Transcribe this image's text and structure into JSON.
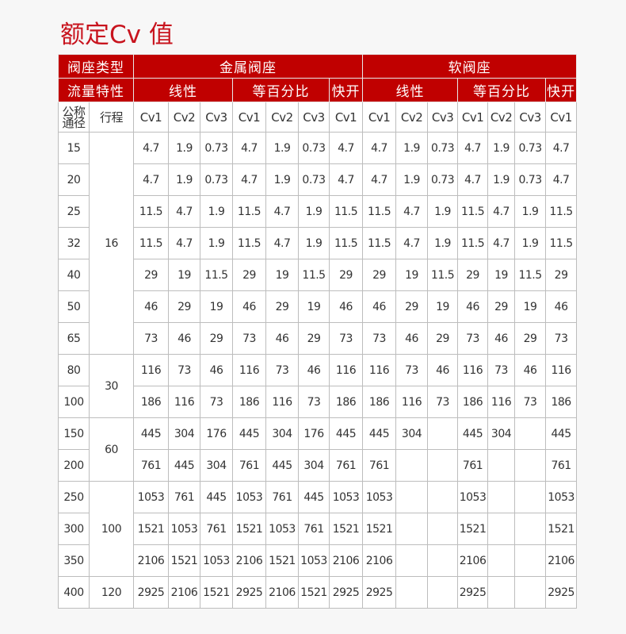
{
  "title": "额定Cv 值",
  "header": {
    "seat_type_label": "阀座类型",
    "metal": "金属阀座",
    "soft": "软阀座",
    "flow_label": "流量特性",
    "linear": "线性",
    "equal_pct": "等百分比",
    "quick_open": "快开",
    "dn_label": "公称通径",
    "stroke_label": "行程",
    "cv_cols": [
      "Cv1",
      "Cv2",
      "Cv3",
      "Cv1",
      "Cv2",
      "Cv3",
      "Cv1",
      "Cv1",
      "Cv2",
      "Cv3",
      "Cv1",
      "Cv2",
      "Cv3",
      "Cv1"
    ]
  },
  "stroke_groups": [
    {
      "stroke": "16",
      "rows": 7
    },
    {
      "stroke": "30",
      "rows": 2
    },
    {
      "stroke": "60",
      "rows": 2
    },
    {
      "stroke": "100",
      "rows": 3
    },
    {
      "stroke": "120",
      "rows": 1
    }
  ],
  "rows": [
    {
      "dn": "15",
      "cv": [
        "4.7",
        "1.9",
        "0.73",
        "4.7",
        "1.9",
        "0.73",
        "4.7",
        "4.7",
        "1.9",
        "0.73",
        "4.7",
        "1.9",
        "0.73",
        "4.7"
      ]
    },
    {
      "dn": "20",
      "cv": [
        "4.7",
        "1.9",
        "0.73",
        "4.7",
        "1.9",
        "0.73",
        "4.7",
        "4.7",
        "1.9",
        "0.73",
        "4.7",
        "1.9",
        "0.73",
        "4.7"
      ]
    },
    {
      "dn": "25",
      "cv": [
        "11.5",
        "4.7",
        "1.9",
        "11.5",
        "4.7",
        "1.9",
        "11.5",
        "11.5",
        "4.7",
        "1.9",
        "11.5",
        "4.7",
        "1.9",
        "11.5"
      ]
    },
    {
      "dn": "32",
      "cv": [
        "11.5",
        "4.7",
        "1.9",
        "11.5",
        "4.7",
        "1.9",
        "11.5",
        "11.5",
        "4.7",
        "1.9",
        "11.5",
        "4.7",
        "1.9",
        "11.5"
      ]
    },
    {
      "dn": "40",
      "cv": [
        "29",
        "19",
        "11.5",
        "29",
        "19",
        "11.5",
        "29",
        "29",
        "19",
        "11.5",
        "29",
        "19",
        "11.5",
        "29"
      ]
    },
    {
      "dn": "50",
      "cv": [
        "46",
        "29",
        "19",
        "46",
        "29",
        "19",
        "46",
        "46",
        "29",
        "19",
        "46",
        "29",
        "19",
        "46"
      ]
    },
    {
      "dn": "65",
      "cv": [
        "73",
        "46",
        "29",
        "73",
        "46",
        "29",
        "73",
        "73",
        "46",
        "29",
        "73",
        "46",
        "29",
        "73"
      ]
    },
    {
      "dn": "80",
      "cv": [
        "116",
        "73",
        "46",
        "116",
        "73",
        "46",
        "116",
        "116",
        "73",
        "46",
        "116",
        "73",
        "46",
        "116"
      ]
    },
    {
      "dn": "100",
      "cv": [
        "186",
        "116",
        "73",
        "186",
        "116",
        "73",
        "186",
        "186",
        "116",
        "73",
        "186",
        "116",
        "73",
        "186"
      ]
    },
    {
      "dn": "150",
      "cv": [
        "445",
        "304",
        "176",
        "445",
        "304",
        "176",
        "445",
        "445",
        "304",
        "",
        "445",
        "304",
        "",
        "445"
      ]
    },
    {
      "dn": "200",
      "cv": [
        "761",
        "445",
        "304",
        "761",
        "445",
        "304",
        "761",
        "761",
        "",
        "",
        "761",
        "",
        "",
        "761"
      ]
    },
    {
      "dn": "250",
      "cv": [
        "1053",
        "761",
        "445",
        "1053",
        "761",
        "445",
        "1053",
        "1053",
        "",
        "",
        "1053",
        "",
        "",
        "1053"
      ]
    },
    {
      "dn": "300",
      "cv": [
        "1521",
        "1053",
        "761",
        "1521",
        "1053",
        "761",
        "1521",
        "1521",
        "",
        "",
        "1521",
        "",
        "",
        "1521"
      ]
    },
    {
      "dn": "350",
      "cv": [
        "2106",
        "1521",
        "1053",
        "2106",
        "1521",
        "1053",
        "2106",
        "2106",
        "",
        "",
        "2106",
        "",
        "",
        "2106"
      ]
    },
    {
      "dn": "400",
      "cv": [
        "2925",
        "2106",
        "1521",
        "2925",
        "2106",
        "1521",
        "2925",
        "2925",
        "",
        "",
        "2925",
        "",
        "",
        "2925"
      ]
    }
  ]
}
